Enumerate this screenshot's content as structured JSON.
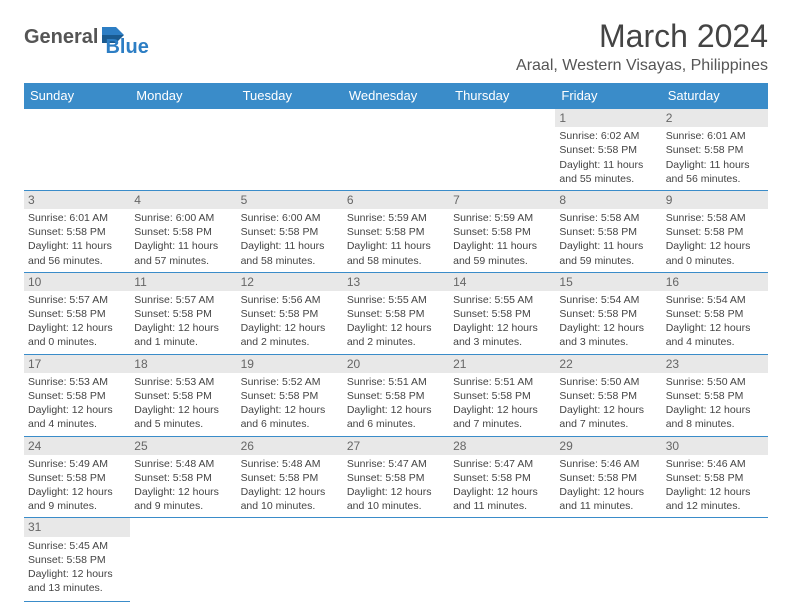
{
  "logo": {
    "text1": "General",
    "text2": "Blue"
  },
  "title": "March 2024",
  "location": "Araal, Western Visayas, Philippines",
  "colors": {
    "header_bg": "#3a8cc9",
    "header_fg": "#ffffff",
    "daynum_bg": "#e8e8e8",
    "border": "#3a8cc9",
    "logo_accent": "#2d7ec4"
  },
  "weekdays": [
    "Sunday",
    "Monday",
    "Tuesday",
    "Wednesday",
    "Thursday",
    "Friday",
    "Saturday"
  ],
  "weeks": [
    [
      null,
      null,
      null,
      null,
      null,
      {
        "n": 1,
        "sunrise": "6:02 AM",
        "sunset": "5:58 PM",
        "daylight": "11 hours and 55 minutes."
      },
      {
        "n": 2,
        "sunrise": "6:01 AM",
        "sunset": "5:58 PM",
        "daylight": "11 hours and 56 minutes."
      }
    ],
    [
      {
        "n": 3,
        "sunrise": "6:01 AM",
        "sunset": "5:58 PM",
        "daylight": "11 hours and 56 minutes."
      },
      {
        "n": 4,
        "sunrise": "6:00 AM",
        "sunset": "5:58 PM",
        "daylight": "11 hours and 57 minutes."
      },
      {
        "n": 5,
        "sunrise": "6:00 AM",
        "sunset": "5:58 PM",
        "daylight": "11 hours and 58 minutes."
      },
      {
        "n": 6,
        "sunrise": "5:59 AM",
        "sunset": "5:58 PM",
        "daylight": "11 hours and 58 minutes."
      },
      {
        "n": 7,
        "sunrise": "5:59 AM",
        "sunset": "5:58 PM",
        "daylight": "11 hours and 59 minutes."
      },
      {
        "n": 8,
        "sunrise": "5:58 AM",
        "sunset": "5:58 PM",
        "daylight": "11 hours and 59 minutes."
      },
      {
        "n": 9,
        "sunrise": "5:58 AM",
        "sunset": "5:58 PM",
        "daylight": "12 hours and 0 minutes."
      }
    ],
    [
      {
        "n": 10,
        "sunrise": "5:57 AM",
        "sunset": "5:58 PM",
        "daylight": "12 hours and 0 minutes."
      },
      {
        "n": 11,
        "sunrise": "5:57 AM",
        "sunset": "5:58 PM",
        "daylight": "12 hours and 1 minute."
      },
      {
        "n": 12,
        "sunrise": "5:56 AM",
        "sunset": "5:58 PM",
        "daylight": "12 hours and 2 minutes."
      },
      {
        "n": 13,
        "sunrise": "5:55 AM",
        "sunset": "5:58 PM",
        "daylight": "12 hours and 2 minutes."
      },
      {
        "n": 14,
        "sunrise": "5:55 AM",
        "sunset": "5:58 PM",
        "daylight": "12 hours and 3 minutes."
      },
      {
        "n": 15,
        "sunrise": "5:54 AM",
        "sunset": "5:58 PM",
        "daylight": "12 hours and 3 minutes."
      },
      {
        "n": 16,
        "sunrise": "5:54 AM",
        "sunset": "5:58 PM",
        "daylight": "12 hours and 4 minutes."
      }
    ],
    [
      {
        "n": 17,
        "sunrise": "5:53 AM",
        "sunset": "5:58 PM",
        "daylight": "12 hours and 4 minutes."
      },
      {
        "n": 18,
        "sunrise": "5:53 AM",
        "sunset": "5:58 PM",
        "daylight": "12 hours and 5 minutes."
      },
      {
        "n": 19,
        "sunrise": "5:52 AM",
        "sunset": "5:58 PM",
        "daylight": "12 hours and 6 minutes."
      },
      {
        "n": 20,
        "sunrise": "5:51 AM",
        "sunset": "5:58 PM",
        "daylight": "12 hours and 6 minutes."
      },
      {
        "n": 21,
        "sunrise": "5:51 AM",
        "sunset": "5:58 PM",
        "daylight": "12 hours and 7 minutes."
      },
      {
        "n": 22,
        "sunrise": "5:50 AM",
        "sunset": "5:58 PM",
        "daylight": "12 hours and 7 minutes."
      },
      {
        "n": 23,
        "sunrise": "5:50 AM",
        "sunset": "5:58 PM",
        "daylight": "12 hours and 8 minutes."
      }
    ],
    [
      {
        "n": 24,
        "sunrise": "5:49 AM",
        "sunset": "5:58 PM",
        "daylight": "12 hours and 9 minutes."
      },
      {
        "n": 25,
        "sunrise": "5:48 AM",
        "sunset": "5:58 PM",
        "daylight": "12 hours and 9 minutes."
      },
      {
        "n": 26,
        "sunrise": "5:48 AM",
        "sunset": "5:58 PM",
        "daylight": "12 hours and 10 minutes."
      },
      {
        "n": 27,
        "sunrise": "5:47 AM",
        "sunset": "5:58 PM",
        "daylight": "12 hours and 10 minutes."
      },
      {
        "n": 28,
        "sunrise": "5:47 AM",
        "sunset": "5:58 PM",
        "daylight": "12 hours and 11 minutes."
      },
      {
        "n": 29,
        "sunrise": "5:46 AM",
        "sunset": "5:58 PM",
        "daylight": "12 hours and 11 minutes."
      },
      {
        "n": 30,
        "sunrise": "5:46 AM",
        "sunset": "5:58 PM",
        "daylight": "12 hours and 12 minutes."
      }
    ],
    [
      {
        "n": 31,
        "sunrise": "5:45 AM",
        "sunset": "5:58 PM",
        "daylight": "12 hours and 13 minutes."
      },
      null,
      null,
      null,
      null,
      null,
      null
    ]
  ],
  "labels": {
    "sunrise": "Sunrise:",
    "sunset": "Sunset:",
    "daylight": "Daylight:"
  }
}
